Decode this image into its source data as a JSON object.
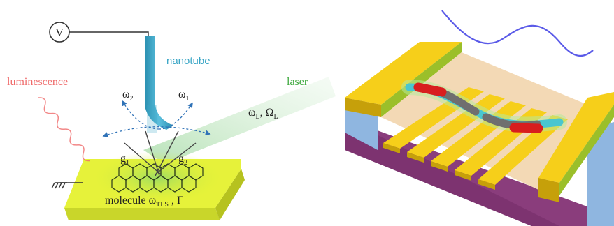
{
  "left_panel": {
    "voltmeter_symbol": "V",
    "nanotube_label": "nanotube",
    "luminescence_label": "luminescence",
    "laser_label": "laser",
    "laser_params": {
      "omega": "ω",
      "omega_sub": "L",
      "sep": ", ",
      "Omega": "Ω",
      "Omega_sub": "L"
    },
    "mode_labels": [
      {
        "symbol": "ω",
        "sub": "2"
      },
      {
        "symbol": "ω",
        "sub": "1"
      }
    ],
    "coupling_labels": [
      {
        "symbol": "g",
        "sub": "1"
      },
      {
        "symbol": "g",
        "sub": "2"
      }
    ],
    "molecule_label": {
      "text": "molecule ω",
      "sub": "TLS",
      "tail": " , Γ"
    },
    "colors": {
      "nanotube": "#3aa6c6",
      "luminescence": "#ef5b5b",
      "laser": "#3da83d",
      "substrate": "#e4f234",
      "mode_arrows": "#2f72b7"
    }
  },
  "right_panel": {
    "colors": {
      "electrode_top": "#f6cf1a",
      "electrode_side": "#c6a00a",
      "green_layer": "#9bbf2a",
      "magenta_layer": "#8a3d7c",
      "blue_layer": "#8fb6e0",
      "wave": "#5a5ae8",
      "nanotube": "#4ac6cf",
      "red_segment": "#d81e1e",
      "gray_segment": "#6f6f6f"
    }
  }
}
